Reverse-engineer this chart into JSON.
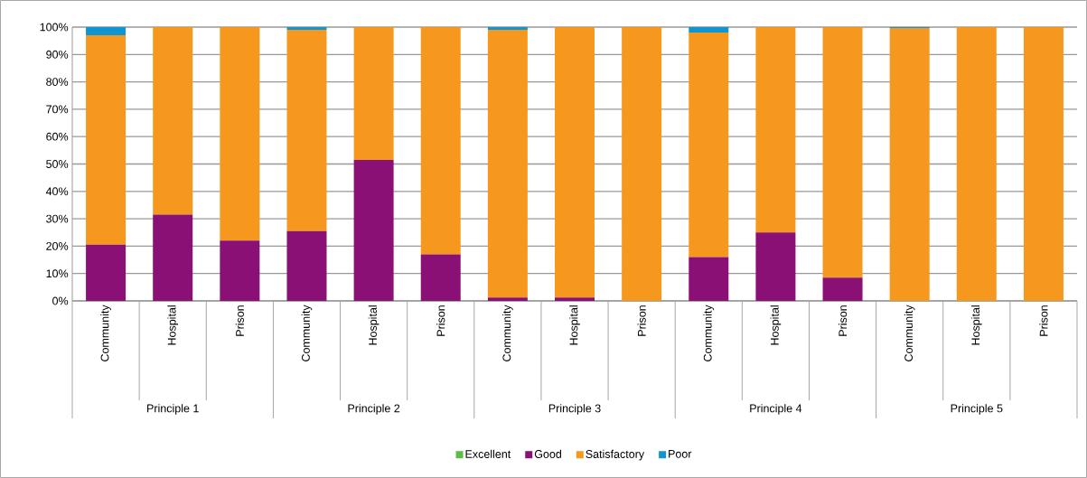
{
  "chart_data": {
    "type": "bar",
    "stacked": true,
    "categories": [
      "Community",
      "Hospital",
      "Prison",
      "Community",
      "Hospital",
      "Prison",
      "Community",
      "Hospital",
      "Prison",
      "Community",
      "Hospital",
      "Prison",
      "Community",
      "Hospital",
      "Prison"
    ],
    "annotations": [
      "Principle 1",
      "Principle 2",
      "Principle 3",
      "Principle 4",
      "Principle 5"
    ],
    "series": [
      {
        "name": "Excellent",
        "color": "#5bbf47",
        "values": [
          0,
          0,
          0,
          0,
          0,
          0,
          0,
          0,
          0,
          0,
          0,
          0,
          0,
          0,
          0
        ]
      },
      {
        "name": "Good",
        "color": "#8b1076",
        "values": [
          20.5,
          31.5,
          22,
          25.5,
          51.5,
          17,
          1.2,
          1.2,
          0,
          16,
          25,
          8.5,
          0,
          0,
          0
        ]
      },
      {
        "name": "Satisfactory",
        "color": "#f7981e",
        "values": [
          76.5,
          68.5,
          78,
          73.5,
          48.5,
          83,
          97.8,
          98.8,
          100,
          82,
          75,
          91.5,
          99.7,
          100,
          100
        ]
      },
      {
        "name": "Poor",
        "color": "#0e95d2",
        "values": [
          3,
          0,
          0,
          1,
          0,
          0,
          1,
          0,
          0,
          2,
          0,
          0,
          0.3,
          0,
          0
        ]
      }
    ],
    "ylim": [
      0,
      100
    ],
    "yticks": [
      {
        "value": 0,
        "label": "0%"
      },
      {
        "value": 10,
        "label": "10%"
      },
      {
        "value": 20,
        "label": "20%"
      },
      {
        "value": 30,
        "label": "30%"
      },
      {
        "value": 40,
        "label": "40%"
      },
      {
        "value": 50,
        "label": "50%"
      },
      {
        "value": 60,
        "label": "60%"
      },
      {
        "value": 70,
        "label": "70%"
      },
      {
        "value": 80,
        "label": "80%"
      },
      {
        "value": 90,
        "label": "90%"
      },
      {
        "value": 100,
        "label": "100%"
      }
    ],
    "grid": "y",
    "legend": "bottom"
  }
}
